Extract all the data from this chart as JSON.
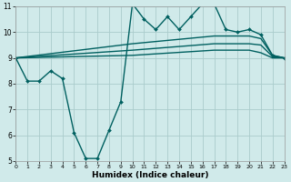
{
  "xlabel": "Humidex (Indice chaleur)",
  "bg_color": "#d0eaea",
  "line_color": "#006060",
  "grid_color": "#aacccc",
  "xlim": [
    0,
    23
  ],
  "ylim": [
    5,
    11
  ],
  "xticks": [
    0,
    1,
    2,
    3,
    4,
    5,
    6,
    7,
    8,
    9,
    10,
    11,
    12,
    13,
    14,
    15,
    16,
    17,
    18,
    19,
    20,
    21,
    22,
    23
  ],
  "yticks": [
    5,
    6,
    7,
    8,
    9,
    10,
    11
  ],
  "series": [
    {
      "x": [
        0,
        1,
        2,
        3,
        4,
        5,
        6,
        7,
        8,
        9,
        10,
        11,
        12,
        13,
        14,
        15,
        16,
        17,
        18,
        19,
        20,
        21,
        22,
        23
      ],
      "y": [
        9,
        8.1,
        8.1,
        8.5,
        8.2,
        6.1,
        5.1,
        5.1,
        6.2,
        7.3,
        11.1,
        10.5,
        10.1,
        10.6,
        10.1,
        10.6,
        11.1,
        11.1,
        10.1,
        10.0,
        10.1,
        9.9,
        9.1,
        9.0
      ],
      "marker": true,
      "lw": 1.0
    },
    {
      "x": [
        0,
        10,
        17,
        20,
        21,
        22,
        23
      ],
      "y": [
        9.0,
        9.55,
        9.85,
        9.85,
        9.75,
        9.1,
        9.0
      ],
      "marker": false,
      "lw": 1.0
    },
    {
      "x": [
        0,
        10,
        17,
        20,
        21,
        22,
        23
      ],
      "y": [
        9.0,
        9.3,
        9.55,
        9.55,
        9.5,
        9.05,
        9.0
      ],
      "marker": false,
      "lw": 1.0
    },
    {
      "x": [
        0,
        10,
        17,
        20,
        21,
        22,
        23
      ],
      "y": [
        9.0,
        9.1,
        9.3,
        9.3,
        9.2,
        9.0,
        9.0
      ],
      "marker": false,
      "lw": 1.0
    }
  ]
}
